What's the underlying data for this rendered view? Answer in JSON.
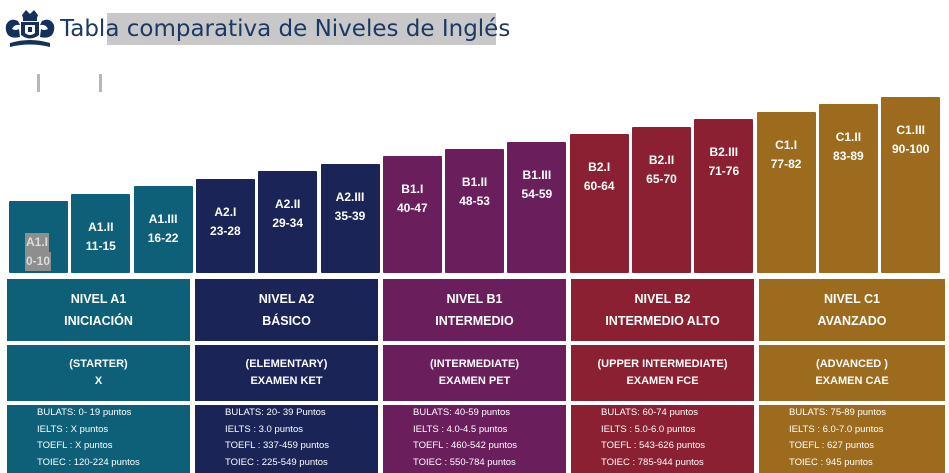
{
  "header": {
    "title": "Tabla comparativa de Niveles de Inglés",
    "logo_icon": "crest-icon"
  },
  "colors": {
    "a1": "#0d6078",
    "a2": "#1a2457",
    "b1": "#6a1e5c",
    "b2": "#8a2031",
    "c1": "#9c6b1e"
  },
  "steps": [
    {
      "code": "A1.I",
      "range": "0-10",
      "highlight": true
    },
    {
      "code": "A1.II",
      "range": "11-15"
    },
    {
      "code": "A1.III",
      "range": "16-22"
    },
    {
      "code": "A2.I",
      "range": "23-28"
    },
    {
      "code": "A2.II",
      "range": "29-34"
    },
    {
      "code": "A2.III",
      "range": "35-39"
    },
    {
      "code": "B1.I",
      "range": "40-47"
    },
    {
      "code": "B1.II",
      "range": "48-53"
    },
    {
      "code": "B1.III",
      "range": "54-59"
    },
    {
      "code": "B2.I",
      "range": "60-64"
    },
    {
      "code": "B2.II",
      "range": "65-70"
    },
    {
      "code": "B2.III",
      "range": "71-76"
    },
    {
      "code": "C1.I",
      "range": "77-82"
    },
    {
      "code": "C1.II",
      "range": "83-89"
    },
    {
      "code": "C1.III",
      "range": "90-100"
    }
  ],
  "levels": [
    {
      "name": "NIVEL A1",
      "label": "INICIACIÓN",
      "cefr": "(STARTER)",
      "exam": "X",
      "scores": [
        "BULATS: 0- 19 puntos",
        "IELTS : X puntos",
        "TOEFL : X puntos",
        "TOIEC : 120-224 puntos"
      ]
    },
    {
      "name": "NIVEL A2",
      "label": "BÁSICO",
      "cefr": "(ELEMENTARY)",
      "exam": "EXAMEN KET",
      "scores": [
        "BULATS: 20- 39 Puntos",
        "IELTS : 3.0 puntos",
        "TOEFL : 337-459 puntos",
        "TOIEC : 225-549 puntos"
      ]
    },
    {
      "name": "NIVEL B1",
      "label": "INTERMEDIO",
      "cefr": "(INTERMEDIATE)",
      "exam": "EXAMEN PET",
      "scores": [
        "BULATS: 40-59 puntos",
        "IELTS : 4.0-4.5 puntos",
        "TOEFL : 460-542 puntos",
        "TOIEC : 550-784 puntos"
      ]
    },
    {
      "name": "NIVEL B2",
      "label": "INTERMEDIO ALTO",
      "cefr": "(UPPER INTERMEDIATE)",
      "exam": "EXAMEN FCE",
      "scores": [
        "BULATS: 60-74 puntos",
        "IELTS : 5.0-6.0 puntos",
        "TOEFL : 543-626 puntos",
        "TOIEC : 785-944 puntos"
      ]
    },
    {
      "name": "NIVEL C1",
      "label": "AVANZADO",
      "cefr": "(ADVANCED )",
      "exam": "EXAMEN CAE",
      "scores": [
        "BULATS: 75-89 puntos",
        "IELTS : 6.0-7.0 puntos",
        "TOEFL : 627 puntos",
        "TOIEC : 945 puntos"
      ]
    }
  ]
}
